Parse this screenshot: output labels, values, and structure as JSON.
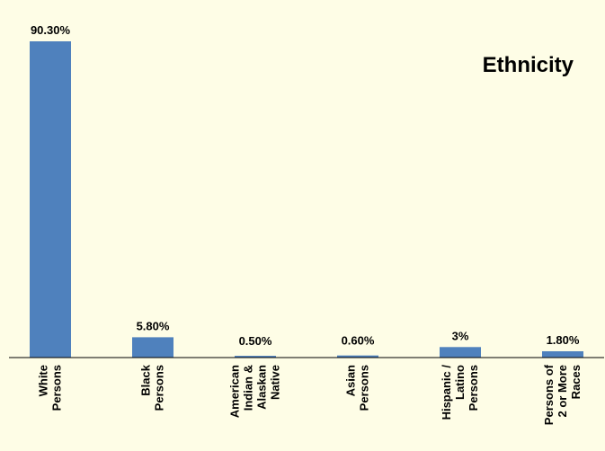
{
  "chart_data": {
    "type": "bar",
    "title": "Ethnicity",
    "categories": [
      [
        "White",
        "Persons"
      ],
      [
        "Black",
        "Persons"
      ],
      [
        "American",
        "Indian &",
        "Alaskan",
        "Native"
      ],
      [
        "Asian",
        "Persons"
      ],
      [
        "Hispanic /",
        "Latino",
        "Persons"
      ],
      [
        "Persons of",
        "2 or More",
        "Races"
      ]
    ],
    "values": [
      90.3,
      5.8,
      0.5,
      0.6,
      3,
      1.8
    ],
    "data_labels": [
      "90.30%",
      "5.80%",
      "0.50%",
      "0.60%",
      "3%",
      "1.80%"
    ],
    "ylim": [
      0,
      100
    ],
    "grid": false,
    "legend": "none",
    "colors": {
      "background": "#fefde6",
      "bar": "#4f81bd",
      "axis": "#000000"
    }
  }
}
